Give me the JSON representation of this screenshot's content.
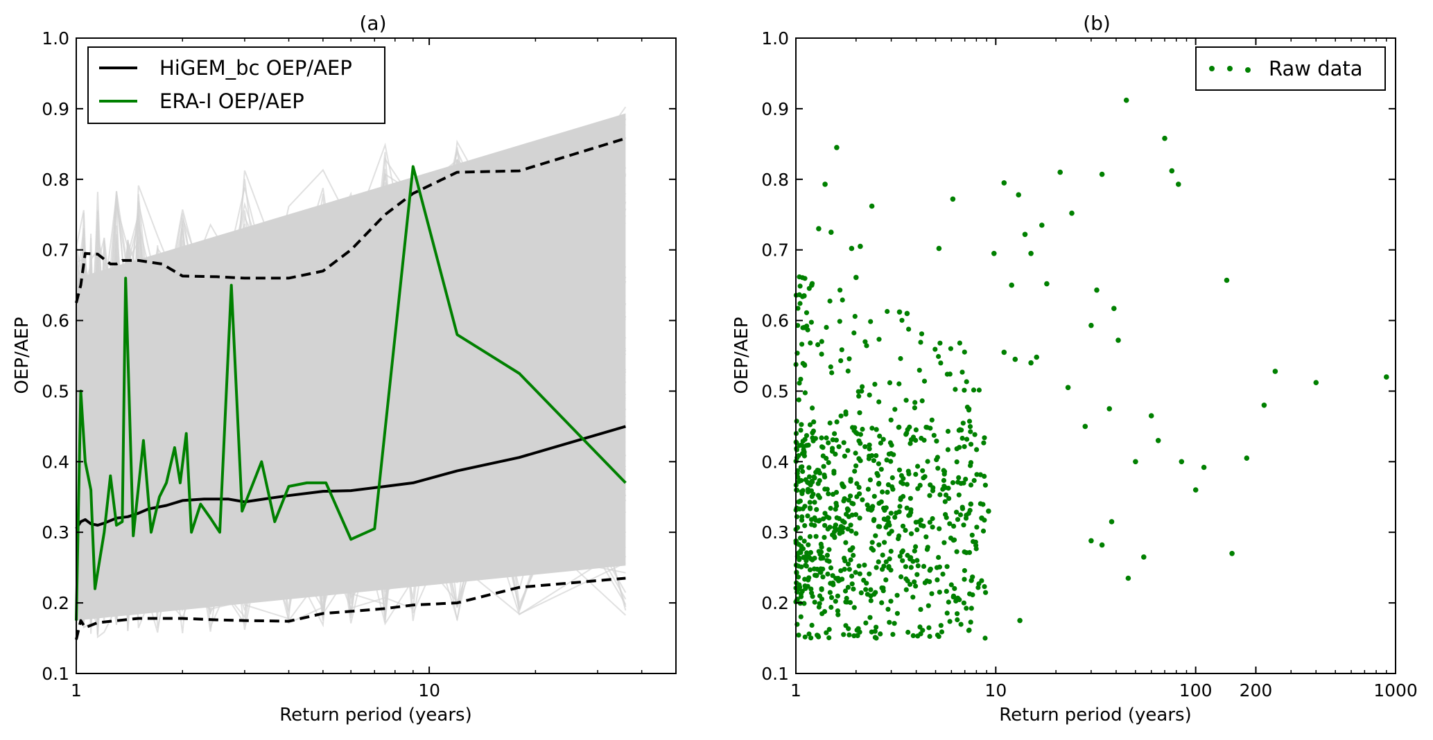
{
  "chart_data": [
    {
      "type": "line",
      "title": "(a)",
      "xlabel": "Return period (years)",
      "ylabel": "OEP/AEP",
      "x_scale": "log",
      "xlim": [
        1,
        50
      ],
      "ylim": [
        0.1,
        1.0
      ],
      "x_ticks": [
        1,
        10
      ],
      "y_ticks": [
        0.1,
        0.2,
        0.3,
        0.4,
        0.5,
        0.6,
        0.7,
        0.8,
        0.9,
        1.0
      ],
      "legend_position": "top-left",
      "background_band": {
        "color": "#d3d3d3",
        "description_hidden": true
      },
      "series": [
        {
          "name": "HiGEM_bc OEP/AEP",
          "color": "#000000",
          "style": "solid",
          "x": [
            1.0,
            1.03,
            1.06,
            1.1,
            1.15,
            1.2,
            1.3,
            1.4,
            1.5,
            1.6,
            1.8,
            2.0,
            2.3,
            2.7,
            3.0,
            3.5,
            4.0,
            5.0,
            6.0,
            7.5,
            9.0,
            12.0,
            18.0,
            36.0
          ],
          "y": [
            0.305,
            0.315,
            0.318,
            0.312,
            0.31,
            0.313,
            0.32,
            0.322,
            0.327,
            0.333,
            0.338,
            0.345,
            0.347,
            0.347,
            0.343,
            0.348,
            0.352,
            0.358,
            0.359,
            0.365,
            0.37,
            0.387,
            0.406,
            0.45
          ]
        },
        {
          "name": "ERA-I OEP/AEP",
          "color": "#008000",
          "style": "solid",
          "x": [
            1.0,
            1.03,
            1.06,
            1.1,
            1.13,
            1.2,
            1.25,
            1.3,
            1.35,
            1.38,
            1.45,
            1.55,
            1.63,
            1.72,
            1.8,
            1.9,
            1.97,
            2.05,
            2.12,
            2.25,
            2.4,
            2.55,
            2.75,
            2.95,
            3.35,
            3.65,
            4.0,
            4.5,
            5.1,
            6.0,
            7.0,
            9.0,
            12.0,
            18.0,
            36.0
          ],
          "y": [
            0.175,
            0.5,
            0.4,
            0.36,
            0.22,
            0.3,
            0.38,
            0.31,
            0.315,
            0.66,
            0.295,
            0.43,
            0.3,
            0.35,
            0.37,
            0.42,
            0.37,
            0.44,
            0.3,
            0.34,
            0.32,
            0.3,
            0.65,
            0.33,
            0.4,
            0.315,
            0.365,
            0.37,
            0.37,
            0.29,
            0.305,
            0.818,
            0.58,
            0.525,
            0.37
          ]
        },
        {
          "name": "",
          "color": "#000000",
          "style": "dashed",
          "x": [
            1.0,
            1.03,
            1.06,
            1.15,
            1.25,
            1.3,
            1.35,
            1.5,
            1.75,
            2.0,
            2.5,
            3.0,
            4.0,
            5.0,
            6.0,
            7.5,
            9.0,
            12.0,
            18.0,
            36.0
          ],
          "y": [
            0.625,
            0.65,
            0.695,
            0.694,
            0.68,
            0.68,
            0.685,
            0.685,
            0.68,
            0.663,
            0.662,
            0.66,
            0.66,
            0.67,
            0.7,
            0.75,
            0.78,
            0.81,
            0.812,
            0.858
          ]
        },
        {
          "name": "",
          "color": "#000000",
          "style": "dashed",
          "x": [
            1.0,
            1.03,
            1.06,
            1.15,
            1.5,
            1.75,
            2.0,
            2.5,
            3.0,
            4.0,
            5.0,
            6.0,
            7.5,
            9.0,
            12.0,
            18.0,
            36.0
          ],
          "y": [
            0.148,
            0.175,
            0.165,
            0.172,
            0.178,
            0.178,
            0.178,
            0.176,
            0.175,
            0.174,
            0.185,
            0.188,
            0.192,
            0.197,
            0.2,
            0.222,
            0.235
          ]
        }
      ]
    },
    {
      "type": "scatter",
      "title": "(b)",
      "xlabel": "Return period (years)",
      "ylabel": "OEP/AEP",
      "x_scale": "log",
      "xlim": [
        1,
        1000
      ],
      "ylim": [
        0.1,
        1.0
      ],
      "x_ticks": [
        1,
        10,
        100,
        200,
        1000
      ],
      "y_ticks": [
        0.1,
        0.2,
        0.3,
        0.4,
        0.5,
        0.6,
        0.7,
        0.8,
        0.9,
        1.0
      ],
      "legend_position": "top-right",
      "series": [
        {
          "name": "Raw data",
          "color": "#008000",
          "x": [
            45,
            70,
            76,
            82,
            21,
            34,
            11,
            13,
            1.6,
            1.4,
            2.4,
            6.1,
            14,
            17,
            24,
            1.3,
            1.5,
            1.9,
            2.1,
            5.2,
            9.8,
            15,
            12,
            18,
            143,
            30,
            32,
            39,
            1.1,
            1.2,
            3.6,
            3.3,
            2.0,
            1.1,
            11,
            12.5,
            16,
            15,
            250,
            400,
            900,
            220,
            60,
            65,
            85,
            180,
            110,
            100,
            23,
            28,
            37,
            50,
            55,
            46,
            152,
            38,
            41,
            34,
            30,
            13.2,
            7.5,
            8.5,
            9.2
          ],
          "y": [
            0.912,
            0.858,
            0.812,
            0.793,
            0.81,
            0.807,
            0.795,
            0.778,
            0.845,
            0.793,
            0.762,
            0.772,
            0.722,
            0.735,
            0.752,
            0.73,
            0.725,
            0.702,
            0.705,
            0.702,
            0.695,
            0.695,
            0.65,
            0.652,
            0.657,
            0.593,
            0.643,
            0.617,
            0.635,
            0.65,
            0.61,
            0.612,
            0.661,
            0.59,
            0.555,
            0.545,
            0.548,
            0.54,
            0.528,
            0.512,
            0.52,
            0.48,
            0.465,
            0.43,
            0.4,
            0.405,
            0.392,
            0.36,
            0.505,
            0.45,
            0.475,
            0.4,
            0.265,
            0.235,
            0.27,
            0.315,
            0.572,
            0.282,
            0.288,
            0.175,
            0.34,
            0.32,
            0.33
          ]
        }
      ],
      "note_dense_cluster": "approximately 800 additional points between x=1 and x=8 spanning y=0.13 to 0.67"
    }
  ]
}
